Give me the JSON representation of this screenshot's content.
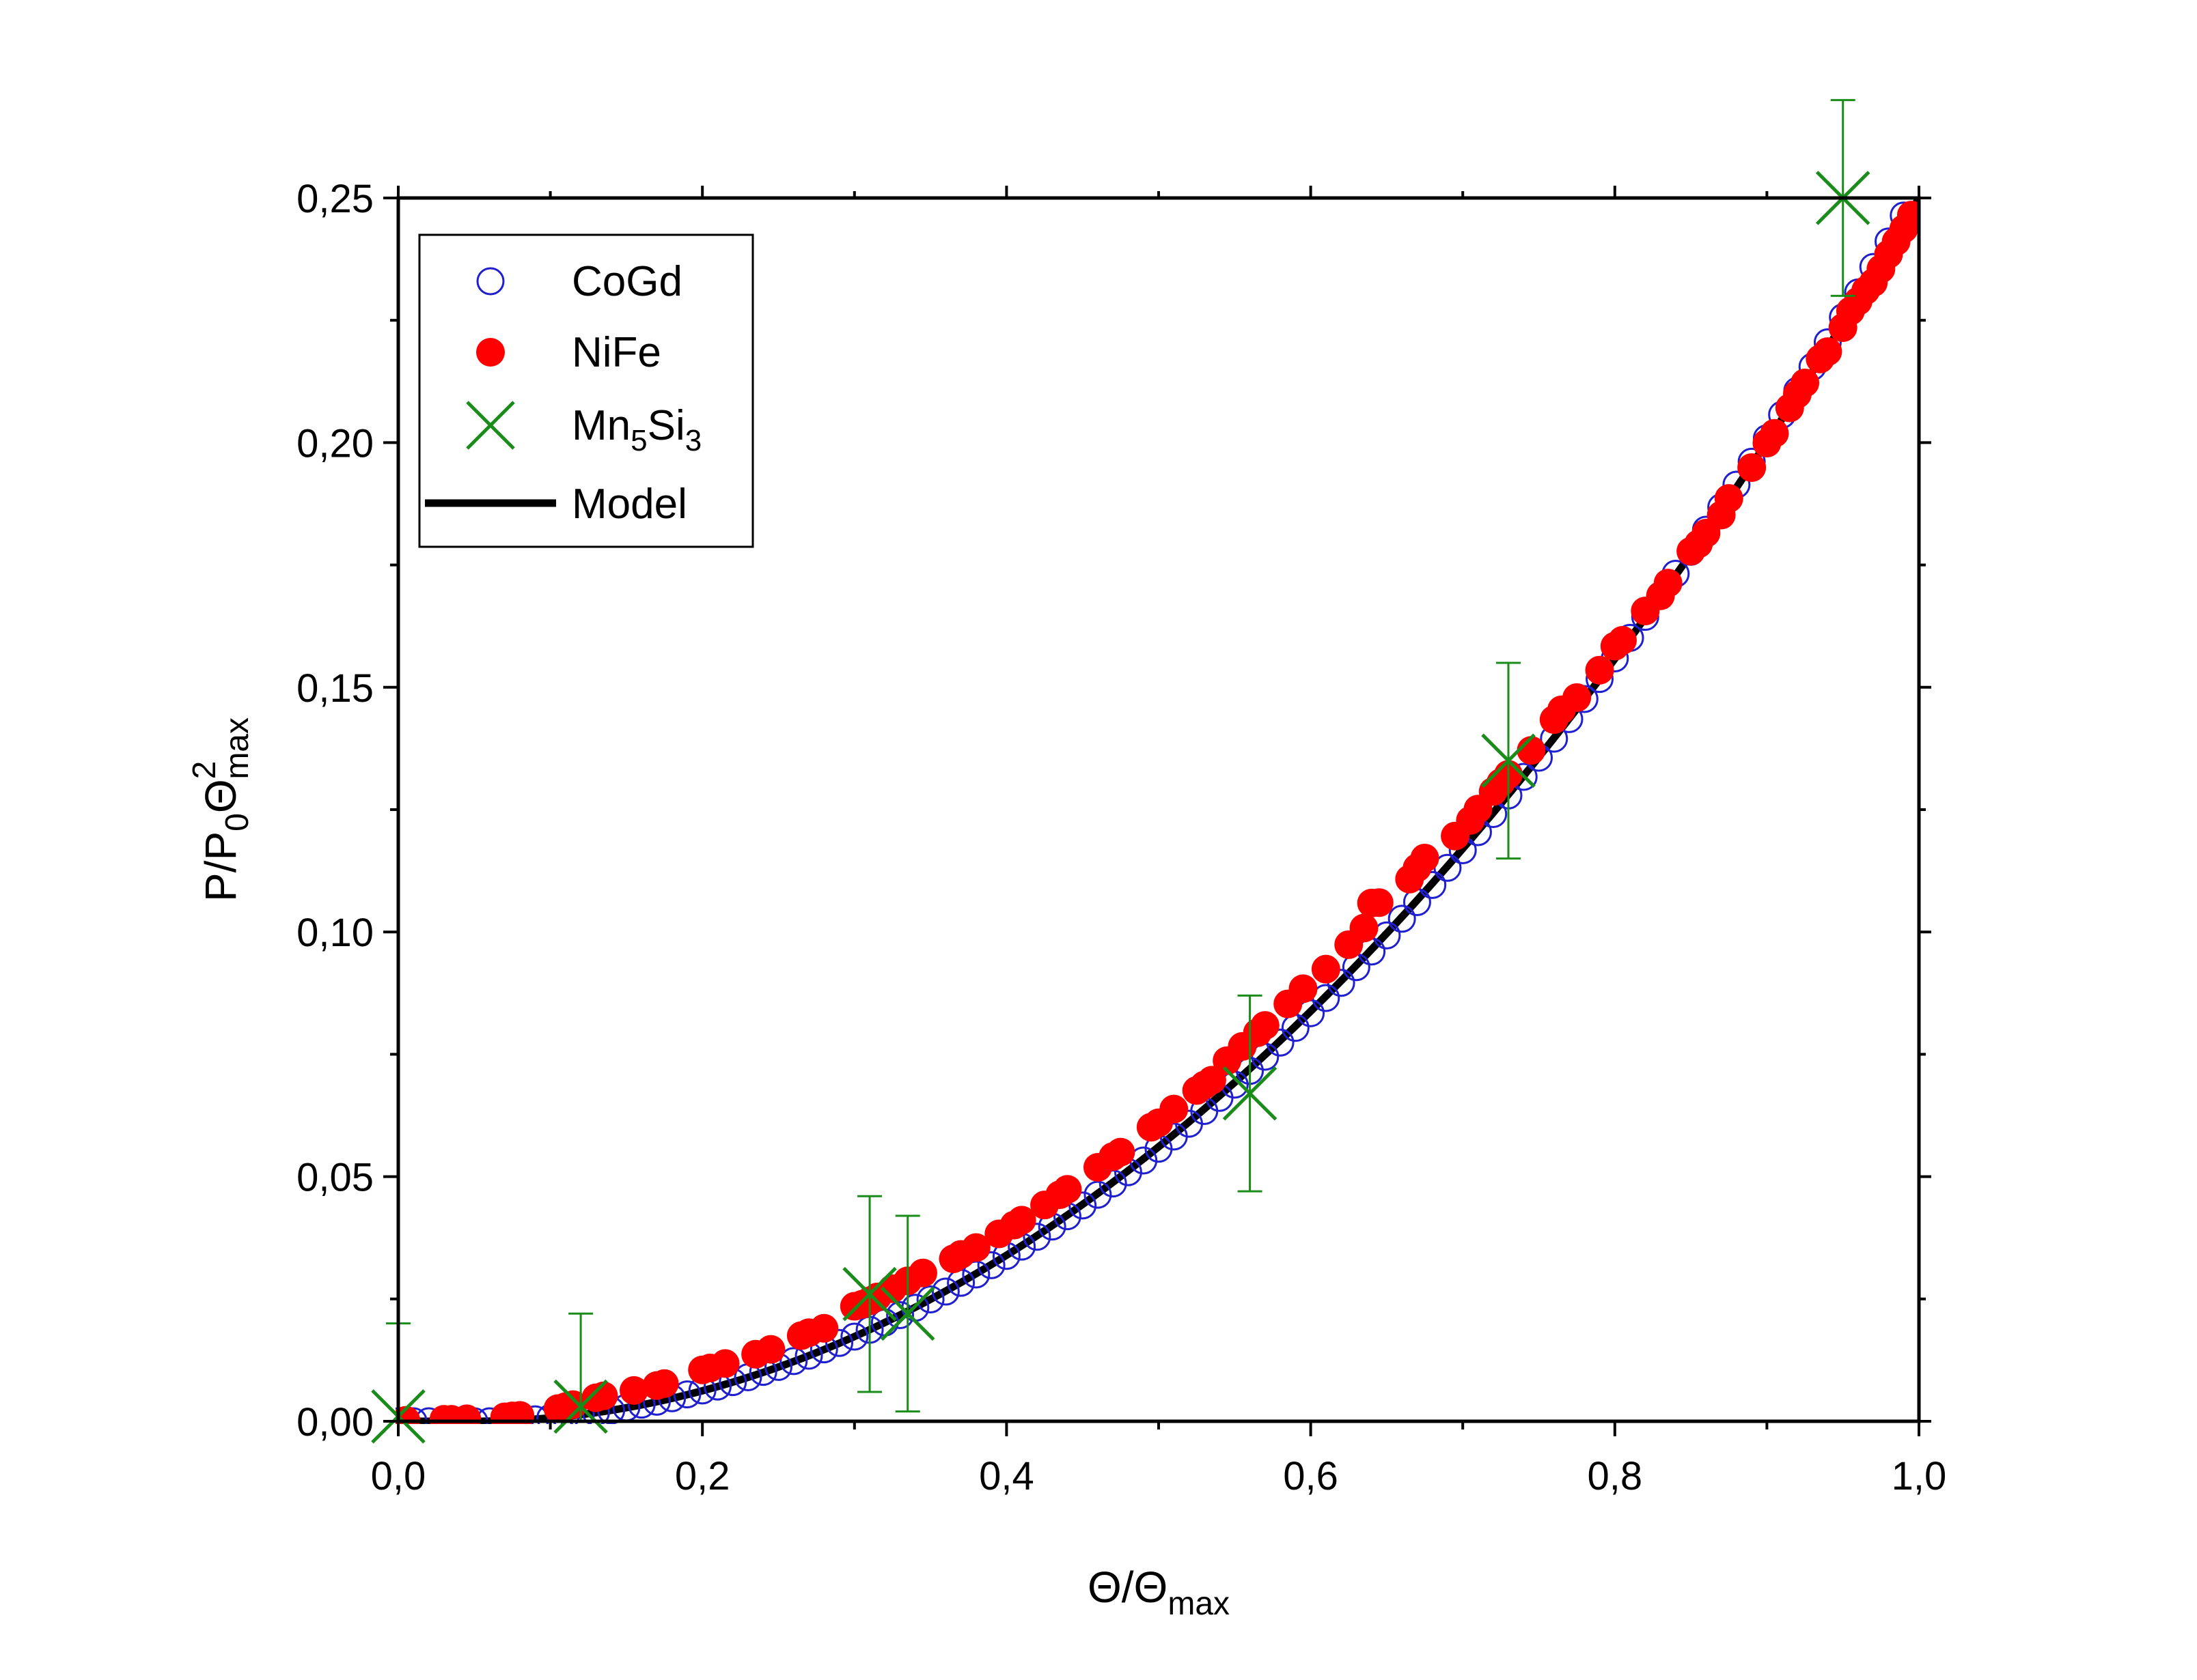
{
  "chart_data": {
    "type": "scatter",
    "title": "",
    "xlabel": {
      "base": "Θ/Θ",
      "sub": "max"
    },
    "ylabel": {
      "base": "P/P",
      "sub1": "0",
      "mid": "Θ",
      "sup": "2",
      "sub2": "max"
    },
    "xlim": [
      0.0,
      1.0
    ],
    "ylim": [
      0.0,
      0.25
    ],
    "x_ticks": [
      0.0,
      0.2,
      0.4,
      0.6,
      0.8,
      1.0
    ],
    "x_tick_labels": [
      "0,0",
      "0,2",
      "0,4",
      "0,6",
      "0,8",
      "1,0"
    ],
    "y_ticks": [
      0.0,
      0.05,
      0.1,
      0.15,
      0.2,
      0.25
    ],
    "y_tick_labels": [
      "0,00",
      "0,05",
      "0,10",
      "0,15",
      "0,20",
      "0,25"
    ],
    "grid": false,
    "legend_position": "top-left",
    "legend": [
      {
        "label": "CoGd",
        "marker": "open-circle",
        "color": "#1f1fd0"
      },
      {
        "label": "NiFe",
        "marker": "filled-circle",
        "color": "#ff0000"
      },
      {
        "label": "Mn",
        "sub1": "5",
        "mid": "Si",
        "sub2": "3",
        "marker": "cross",
        "color": "#1a8c1a"
      },
      {
        "label": "Model",
        "marker": "line",
        "color": "#000000"
      }
    ],
    "model": {
      "name": "Model",
      "description": "y = (x - 0.05)^2 / (4 * 0.95^2) for x > 0.05, else 0",
      "x0": 0.05,
      "color": "#000000"
    },
    "series": [
      {
        "name": "CoGd",
        "color": "#1f1fd0",
        "marker": "open-circle",
        "x": [
          0.0,
          0.01,
          0.02,
          0.03,
          0.04,
          0.05,
          0.06,
          0.07,
          0.08,
          0.09,
          0.1,
          0.11,
          0.12,
          0.13,
          0.14,
          0.15,
          0.16,
          0.17,
          0.18,
          0.19,
          0.2,
          0.21,
          0.22,
          0.23,
          0.24,
          0.25,
          0.26,
          0.27,
          0.28,
          0.29,
          0.3,
          0.31,
          0.32,
          0.33,
          0.34,
          0.35,
          0.36,
          0.37,
          0.38,
          0.39,
          0.4,
          0.41,
          0.42,
          0.43,
          0.44,
          0.45,
          0.46,
          0.47,
          0.48,
          0.49,
          0.5,
          0.51,
          0.52,
          0.53,
          0.54,
          0.55,
          0.56,
          0.57,
          0.58,
          0.59,
          0.6,
          0.61,
          0.62,
          0.63,
          0.64,
          0.65,
          0.66,
          0.67,
          0.68,
          0.69,
          0.7,
          0.71,
          0.72,
          0.73,
          0.74,
          0.75,
          0.76,
          0.77,
          0.78,
          0.79,
          0.8,
          0.81,
          0.82,
          0.83,
          0.84,
          0.85,
          0.86,
          0.87,
          0.88,
          0.89,
          0.9,
          0.91,
          0.92,
          0.93,
          0.94,
          0.95,
          0.96,
          0.97,
          0.98,
          0.99
        ],
        "y": [
          0.0,
          0.0,
          0.0,
          0.0,
          0.0,
          0.0,
          0.0,
          0.0001,
          0.0002,
          0.0004,
          0.0007,
          0.001,
          0.0014,
          0.0018,
          0.0022,
          0.0028,
          0.0034,
          0.004,
          0.0047,
          0.0055,
          0.0063,
          0.0071,
          0.008,
          0.009,
          0.0101,
          0.0111,
          0.0123,
          0.0134,
          0.0147,
          0.016,
          0.0173,
          0.0187,
          0.0202,
          0.0217,
          0.0232,
          0.0249,
          0.0265,
          0.0283,
          0.03,
          0.0319,
          0.0338,
          0.0357,
          0.0377,
          0.0398,
          0.0419,
          0.0441,
          0.0463,
          0.0486,
          0.0509,
          0.0533,
          0.0557,
          0.0582,
          0.0608,
          0.0634,
          0.0661,
          0.0688,
          0.0716,
          0.0745,
          0.0774,
          0.0804,
          0.0834,
          0.0865,
          0.0896,
          0.0928,
          0.096,
          0.0993,
          0.1027,
          0.1061,
          0.1096,
          0.1131,
          0.1167,
          0.1204,
          0.1241,
          0.1279,
          0.1317,
          0.1356,
          0.1395,
          0.1435,
          0.1476,
          0.1517,
          0.1559,
          0.1601,
          0.1644,
          0.1688,
          0.1732,
          0.1777,
          0.1822,
          0.1868,
          0.1914,
          0.1961,
          0.2009,
          0.2057,
          0.2106,
          0.2155,
          0.2205,
          0.2256,
          0.2307,
          0.2359,
          0.2411,
          0.2464
        ]
      },
      {
        "name": "NiFe",
        "color": "#ff0000",
        "marker": "filled-circle",
        "x": [
          0.005,
          0.03,
          0.035,
          0.045,
          0.07,
          0.075,
          0.08,
          0.105,
          0.11,
          0.115,
          0.13,
          0.135,
          0.155,
          0.17,
          0.175,
          0.2,
          0.205,
          0.215,
          0.235,
          0.245,
          0.265,
          0.27,
          0.28,
          0.3,
          0.305,
          0.31,
          0.315,
          0.325,
          0.335,
          0.345,
          0.365,
          0.37,
          0.38,
          0.395,
          0.405,
          0.41,
          0.425,
          0.435,
          0.44,
          0.46,
          0.47,
          0.475,
          0.495,
          0.5,
          0.51,
          0.525,
          0.53,
          0.535,
          0.545,
          0.555,
          0.565,
          0.57,
          0.585,
          0.595,
          0.61,
          0.625,
          0.635,
          0.64,
          0.645,
          0.665,
          0.67,
          0.675,
          0.695,
          0.705,
          0.71,
          0.72,
          0.725,
          0.73,
          0.745,
          0.76,
          0.765,
          0.775,
          0.79,
          0.8,
          0.805,
          0.82,
          0.83,
          0.835,
          0.85,
          0.855,
          0.86,
          0.87,
          0.875,
          0.89,
          0.9,
          0.905,
          0.915,
          0.92,
          0.925,
          0.935,
          0.94,
          0.95,
          0.955,
          0.96,
          0.965,
          0.97,
          0.975,
          0.98,
          0.985,
          0.99,
          0.995
        ],
        "y": [
          0.0002,
          0.0004,
          0.0004,
          0.0005,
          0.0009,
          0.0011,
          0.0012,
          0.0026,
          0.003,
          0.0034,
          0.0048,
          0.0052,
          0.0063,
          0.0073,
          0.0077,
          0.0105,
          0.0109,
          0.0118,
          0.0137,
          0.0147,
          0.0175,
          0.0181,
          0.019,
          0.0235,
          0.0239,
          0.0246,
          0.0254,
          0.0271,
          0.0287,
          0.0303,
          0.0332,
          0.0341,
          0.0355,
          0.0383,
          0.0401,
          0.0411,
          0.0442,
          0.0463,
          0.0474,
          0.0519,
          0.0541,
          0.055,
          0.0601,
          0.061,
          0.0638,
          0.0676,
          0.0687,
          0.0697,
          0.0737,
          0.0766,
          0.0794,
          0.0809,
          0.0853,
          0.0884,
          0.0924,
          0.0974,
          0.1008,
          0.1059,
          0.106,
          0.1108,
          0.1131,
          0.1151,
          0.1196,
          0.1228,
          0.1251,
          0.1287,
          0.1305,
          0.1322,
          0.1371,
          0.1434,
          0.1454,
          0.1479,
          0.1535,
          0.1584,
          0.1596,
          0.1656,
          0.1687,
          0.1713,
          0.1778,
          0.1793,
          0.1815,
          0.1852,
          0.1886,
          0.1949,
          0.1999,
          0.2019,
          0.2071,
          0.2099,
          0.2122,
          0.2171,
          0.2186,
          0.2235,
          0.2269,
          0.2289,
          0.2311,
          0.2327,
          0.2355,
          0.2385,
          0.2411,
          0.2437,
          0.2465
        ]
      },
      {
        "name": "Mn5Si3",
        "color": "#1a8c1a",
        "marker": "cross",
        "x": [
          0.0,
          0.12,
          0.31,
          0.335,
          0.56,
          0.73,
          0.95
        ],
        "y": [
          0.001,
          0.003,
          0.026,
          0.022,
          0.067,
          0.135,
          0.25
        ],
        "yerr": [
          0.019,
          0.019,
          0.02,
          0.02,
          0.02,
          0.02,
          0.02
        ]
      }
    ]
  }
}
